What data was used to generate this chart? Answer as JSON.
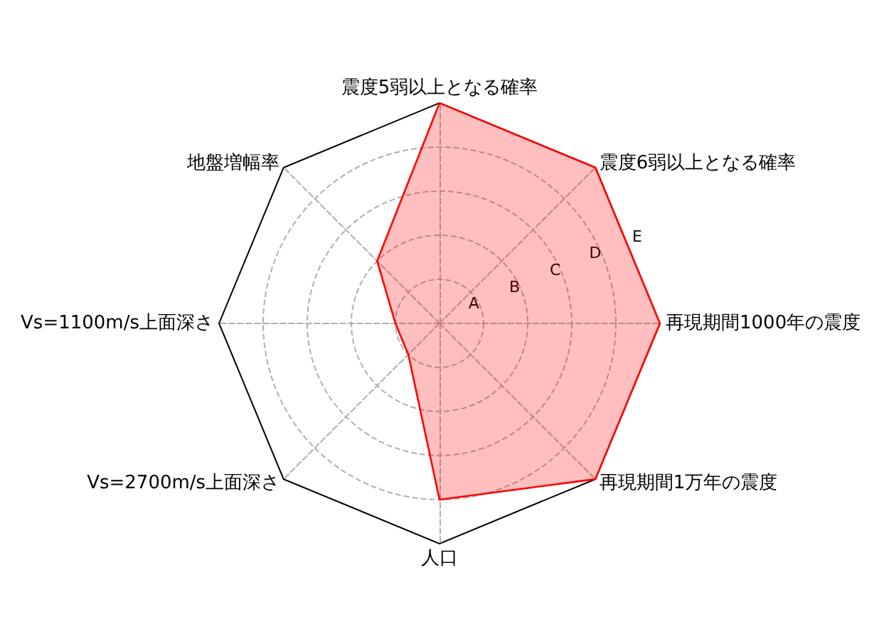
{
  "chart_data": {
    "type": "radar",
    "categories": [
      "震度5弱以上となる確率",
      "震度6弱以上となる確率",
      "再現期間1000年の震度",
      "再現期間1万年の震度",
      "人口",
      "Vs=2700m/s上面深さ",
      "Vs=1100m/s上面深さ",
      "地盤増幅率"
    ],
    "series": [
      {
        "color": "#ff0000",
        "values": [
          5,
          5,
          5,
          5,
          4,
          1,
          1,
          2
        ]
      }
    ],
    "ylim": [
      0,
      5
    ],
    "yticks": [
      {
        "value": 1,
        "label": "A"
      },
      {
        "value": 2,
        "label": "B"
      },
      {
        "value": 3,
        "label": "C"
      },
      {
        "value": 4,
        "label": "D"
      },
      {
        "value": 5,
        "label": "E"
      }
    ],
    "grid": true
  }
}
